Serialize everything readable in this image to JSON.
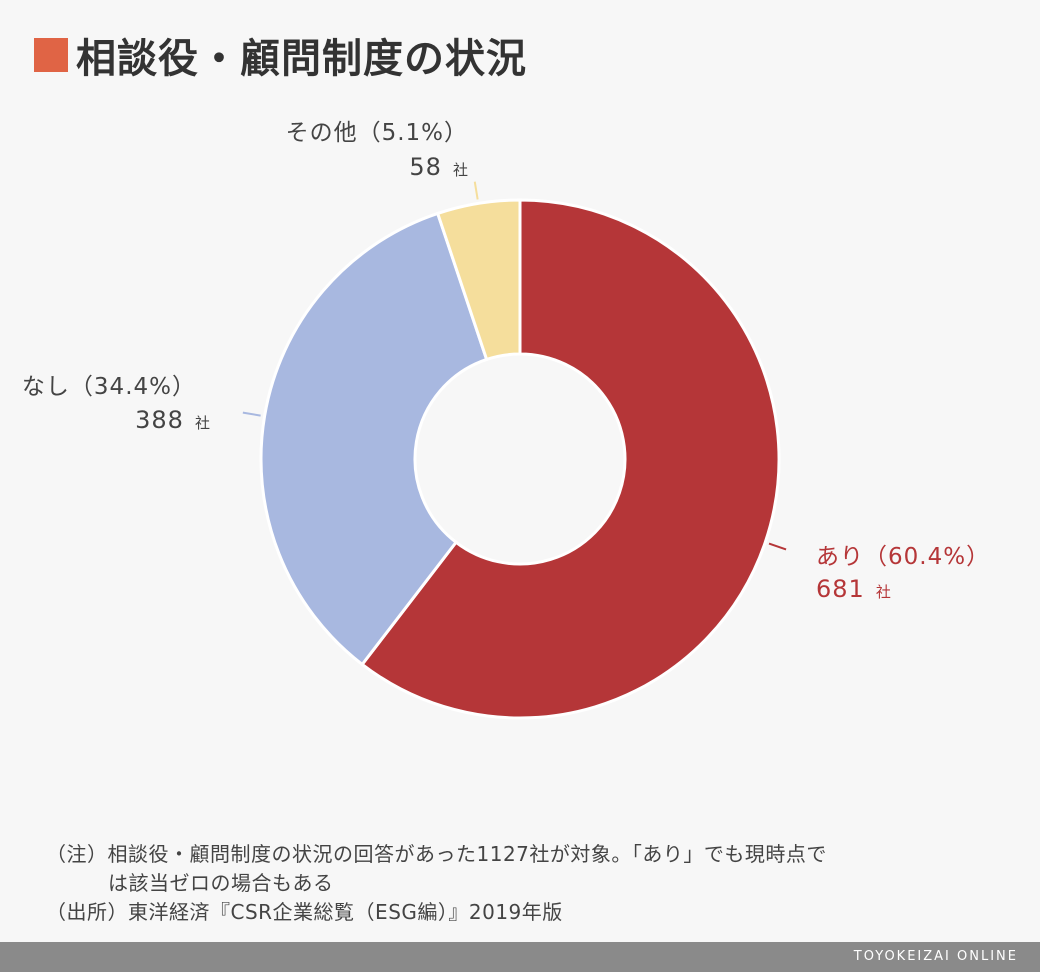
{
  "title": "相談役・顧問制度の状況",
  "colors": {
    "title_square": "#e06445",
    "background": "#f7f7f7"
  },
  "chart_data": {
    "type": "pie",
    "donut": true,
    "slices": [
      {
        "label": "あり（60.4%）",
        "count": "681",
        "unit": "社",
        "percent": 60.4,
        "value": 681,
        "color": "#b53638",
        "label_color": "#b53638"
      },
      {
        "label": "なし（34.4%）",
        "count": "388",
        "unit": "社",
        "percent": 34.4,
        "value": 388,
        "color": "#a8b8e0",
        "label_color": "#444444"
      },
      {
        "label": "その他（5.1%）",
        "count": "58",
        "unit": "社",
        "percent": 5.1,
        "value": 58,
        "color": "#f5de9c",
        "label_color": "#444444"
      }
    ],
    "start": "12 o'clock",
    "direction": "clockwise"
  },
  "notes": {
    "line1": "（注）相談役・顧問制度の状況の回答があった1127社が対象。「あり」でも現時点で",
    "line2": "は該当ゼロの場合もある",
    "line3": "（出所）東洋経済『CSR企業総覧（ESG編）』2019年版"
  },
  "footer": {
    "brand": "TOYOKEIZAI ONLINE"
  }
}
